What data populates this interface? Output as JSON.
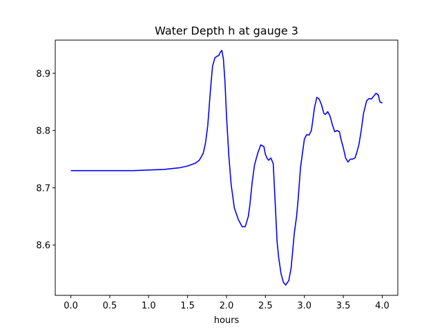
{
  "chart_data": {
    "type": "line",
    "title": "Water Depth h at gauge 3",
    "xlabel": "hours",
    "ylabel": "",
    "xlim": [
      -0.2,
      4.2
    ],
    "ylim": [
      8.512,
      8.958
    ],
    "xticks": [
      0.0,
      0.5,
      1.0,
      1.5,
      2.0,
      2.5,
      3.0,
      3.5,
      4.0
    ],
    "xtick_labels": [
      "0.0",
      "0.5",
      "1.0",
      "1.5",
      "2.0",
      "2.5",
      "3.0",
      "3.5",
      "4.0"
    ],
    "yticks": [
      8.6,
      8.7,
      8.8,
      8.9
    ],
    "ytick_labels": [
      "8.6",
      "8.7",
      "8.8",
      "8.9"
    ],
    "grid": false,
    "series": [
      {
        "color": "#0000ff",
        "x": [
          0.0,
          0.5,
          0.8,
          1.0,
          1.2,
          1.4,
          1.5,
          1.6,
          1.65,
          1.7,
          1.73,
          1.76,
          1.79,
          1.82,
          1.85,
          1.88,
          1.9,
          1.92,
          1.94,
          1.96,
          1.98,
          2.0,
          2.03,
          2.06,
          2.1,
          2.15,
          2.2,
          2.24,
          2.28,
          2.3,
          2.33,
          2.36,
          2.4,
          2.44,
          2.48,
          2.5,
          2.52,
          2.54,
          2.57,
          2.6,
          2.63,
          2.65,
          2.67,
          2.7,
          2.73,
          2.76,
          2.8,
          2.83,
          2.85,
          2.87,
          2.9,
          2.92,
          2.95,
          3.0,
          3.03,
          3.06,
          3.09,
          3.11,
          3.13,
          3.16,
          3.19,
          3.22,
          3.25,
          3.27,
          3.3,
          3.33,
          3.36,
          3.39,
          3.42,
          3.45,
          3.47,
          3.5,
          3.53,
          3.56,
          3.59,
          3.62,
          3.65,
          3.67,
          3.7,
          3.73,
          3.76,
          3.8,
          3.83,
          3.86,
          3.89,
          3.92,
          3.95,
          3.97,
          4.0
        ],
        "y": [
          8.73,
          8.73,
          8.73,
          8.731,
          8.732,
          8.735,
          8.738,
          8.743,
          8.748,
          8.76,
          8.778,
          8.81,
          8.865,
          8.912,
          8.927,
          8.93,
          8.931,
          8.937,
          8.94,
          8.925,
          8.885,
          8.825,
          8.755,
          8.705,
          8.665,
          8.645,
          8.632,
          8.632,
          8.65,
          8.67,
          8.71,
          8.74,
          8.76,
          8.775,
          8.772,
          8.758,
          8.752,
          8.748,
          8.752,
          8.742,
          8.66,
          8.605,
          8.578,
          8.55,
          8.535,
          8.53,
          8.538,
          8.56,
          8.59,
          8.62,
          8.65,
          8.68,
          8.735,
          8.785,
          8.793,
          8.792,
          8.8,
          8.82,
          8.84,
          8.858,
          8.855,
          8.845,
          8.83,
          8.828,
          8.833,
          8.825,
          8.81,
          8.798,
          8.8,
          8.798,
          8.785,
          8.77,
          8.752,
          8.745,
          8.75,
          8.75,
          8.752,
          8.76,
          8.775,
          8.8,
          8.83,
          8.852,
          8.856,
          8.855,
          8.86,
          8.865,
          8.862,
          8.85,
          8.848
        ]
      }
    ]
  }
}
